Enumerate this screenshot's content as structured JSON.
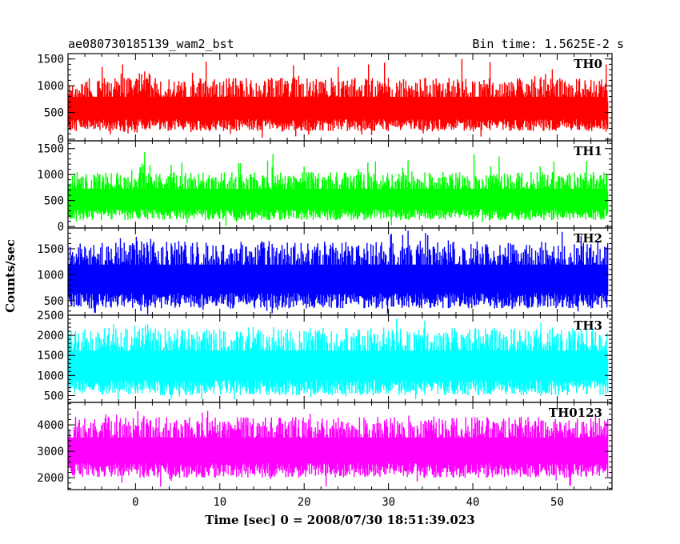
{
  "header": {
    "left_title": "ae080730185139_wam2_bst",
    "right_title": "Bin time: 1.5625E-2 s"
  },
  "chart_data": {
    "type": "line",
    "xlabel": "Time [sec] 0 = 2008/07/30 18:51:39.023",
    "ylabel": "Counts/sec",
    "xlim": [
      -8,
      56.5
    ],
    "x_ticks": [
      0,
      10,
      20,
      30,
      40,
      50
    ],
    "x_tick_labels": [
      "0",
      "10",
      "20",
      "30",
      "40",
      "50"
    ],
    "bin_time_s": 0.015625,
    "data_x_range": [
      -8,
      56
    ],
    "panels": [
      {
        "name": "TH0",
        "color": "#ff0000",
        "ylim": [
          -30,
          1600
        ],
        "y_ticks": [
          0,
          500,
          1000,
          1500
        ],
        "y_tick_labels": [
          "0",
          "500",
          "1000",
          "1500"
        ],
        "baseline": 600,
        "low": 150,
        "high": 1150,
        "peak": 1600
      },
      {
        "name": "TH1",
        "color": "#00ff00",
        "ylim": [
          -30,
          1650
        ],
        "y_ticks": [
          0,
          500,
          1000,
          1500
        ],
        "y_tick_labels": [
          "0",
          "500",
          "1000",
          "1500"
        ],
        "baseline": 550,
        "low": 120,
        "high": 1050,
        "peak": 1600
      },
      {
        "name": "TH2",
        "color": "#0000ff",
        "ylim": [
          220,
          1900
        ],
        "y_ticks": [
          500,
          1000,
          1500
        ],
        "y_tick_labels": [
          "500",
          "1000",
          "1500"
        ],
        "baseline": 950,
        "low": 350,
        "high": 1650,
        "peak": 1900
      },
      {
        "name": "TH3",
        "color": "#00ffff",
        "ylim": [
          330,
          2500
        ],
        "y_ticks": [
          500,
          1000,
          1500,
          2000,
          2500
        ],
        "y_tick_labels": [
          "500",
          "1000",
          "1500",
          "2000",
          "2500"
        ],
        "baseline": 1300,
        "low": 500,
        "high": 2200,
        "peak": 2500
      },
      {
        "name": "TH0123",
        "color": "#ff00ff",
        "ylim": [
          1550,
          4850
        ],
        "y_ticks": [
          2000,
          3000,
          4000
        ],
        "y_tick_labels": [
          "2000",
          "3000",
          "4000"
        ],
        "baseline": 3100,
        "low": 2000,
        "high": 4300,
        "peak": 4800
      }
    ]
  }
}
